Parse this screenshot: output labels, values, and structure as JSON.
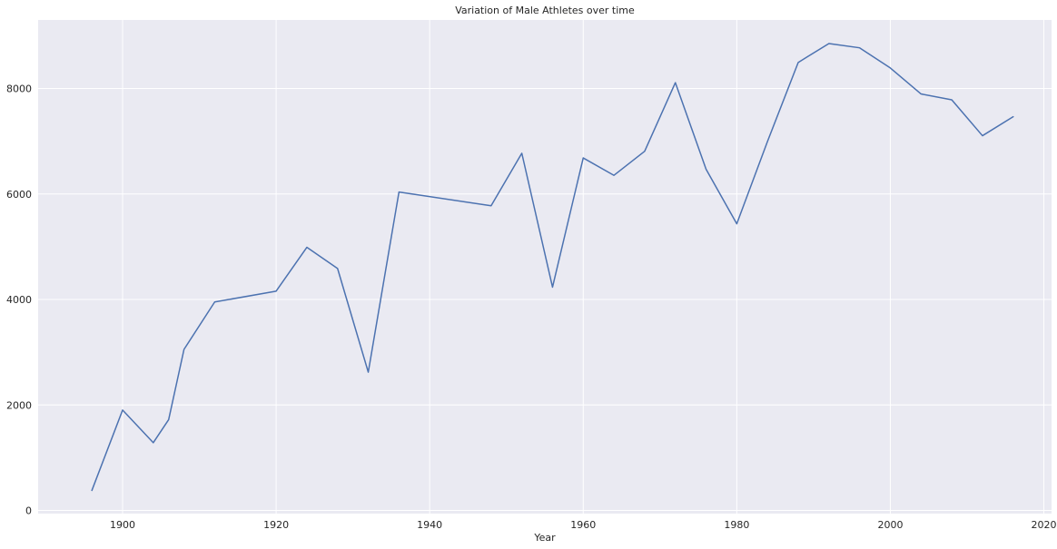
{
  "chart_data": {
    "type": "line",
    "title": "Variation of Male Athletes over time",
    "xlabel": "Year",
    "ylabel": "",
    "xlim": [
      1889,
      2021
    ],
    "ylim": [
      -60,
      9300
    ],
    "xticks": [
      1900,
      1920,
      1940,
      1960,
      1980,
      2000,
      2020
    ],
    "yticks": [
      0,
      2000,
      4000,
      6000,
      8000
    ],
    "grid": true,
    "colors": {
      "line": "#4c72b0",
      "background": "#eaeaf2",
      "grid": "#ffffff"
    },
    "x": [
      1896,
      1900,
      1904,
      1906,
      1908,
      1912,
      1920,
      1924,
      1928,
      1932,
      1936,
      1948,
      1952,
      1956,
      1960,
      1964,
      1968,
      1972,
      1976,
      1980,
      1984,
      1988,
      1992,
      1996,
      2000,
      2004,
      2008,
      2012,
      2016
    ],
    "series": [
      {
        "values": [
          380,
          1903,
          1285,
          1722,
          3054,
          3953,
          4158,
          4989,
          4588,
          2622,
          6038,
          5777,
          6773,
          4234,
          6684,
          6354,
          6811,
          8111,
          6469,
          5435,
          6997,
          8494,
          8853,
          8772,
          8390,
          7897,
          7786,
          7105,
          7465
        ]
      }
    ]
  }
}
